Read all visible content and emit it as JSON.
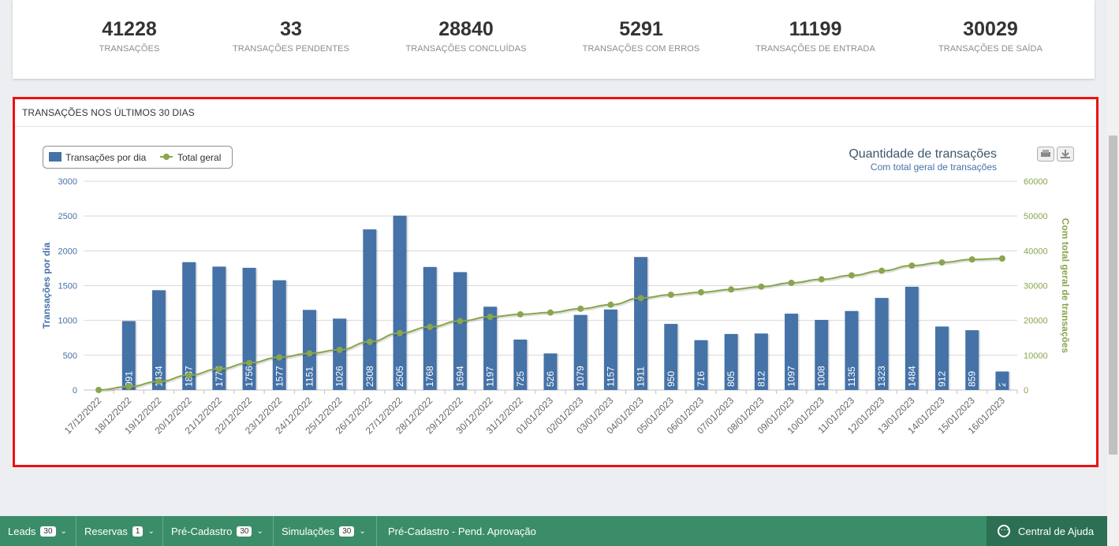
{
  "stats": [
    {
      "value": "41228",
      "label": "TRANSAÇÕES"
    },
    {
      "value": "33",
      "label": "TRANSAÇÕES PENDENTES"
    },
    {
      "value": "28840",
      "label": "TRANSAÇÕES CONCLUÍDAS"
    },
    {
      "value": "5291",
      "label": "TRANSAÇÕES COM ERROS"
    },
    {
      "value": "11199",
      "label": "TRANSAÇÕES DE ENTRADA"
    },
    {
      "value": "30029",
      "label": "TRANSAÇÕES DE SAÍDA"
    }
  ],
  "panel": {
    "title": "TRANSAÇÕES NOS ÚLTIMOS 30 DIAS"
  },
  "chart_data": {
    "type": "bar",
    "title": "Quantidade de transações",
    "subtitle": "Com total geral de transações",
    "legend": [
      "Transações por dia",
      "Total geral"
    ],
    "legend_position": "top-left",
    "ylabel": "Transações por dia",
    "y2label": "Com total geral de transações",
    "ylim": [
      0,
      3000
    ],
    "y2lim": [
      0,
      60000
    ],
    "yticks": [
      "0",
      "500",
      "1000",
      "1500",
      "2000",
      "2500",
      "3000"
    ],
    "y2ticks": [
      "0",
      "10000",
      "20000",
      "30000",
      "40000",
      "50000",
      "60000"
    ],
    "grid": true,
    "categories": [
      "17/12/2022",
      "18/12/2022",
      "19/12/2022",
      "20/12/2022",
      "21/12/2022",
      "22/12/2022",
      "23/12/2022",
      "24/12/2022",
      "25/12/2022",
      "26/12/2022",
      "27/12/2022",
      "28/12/2022",
      "29/12/2022",
      "30/12/2022",
      "31/12/2022",
      "01/01/2023",
      "02/01/2023",
      "03/01/2023",
      "04/01/2023",
      "05/01/2023",
      "06/01/2023",
      "07/01/2023",
      "08/01/2023",
      "09/01/2023",
      "10/01/2023",
      "11/01/2023",
      "12/01/2023",
      "13/01/2023",
      "14/01/2023",
      "15/01/2023",
      "16/01/2023"
    ],
    "series": [
      {
        "name": "Transações por dia",
        "type": "bar",
        "axis": "left",
        "color": "#4572a7",
        "values": [
          0,
          991,
          1434,
          1837,
          1773,
          1756,
          1577,
          1151,
          1026,
          2308,
          2505,
          1768,
          1694,
          1197,
          725,
          526,
          1079,
          1157,
          1911,
          950,
          716,
          805,
          812,
          1097,
          1008,
          1135,
          1323,
          1484,
          912,
          859,
          266
        ]
      },
      {
        "name": "Total geral",
        "type": "line",
        "axis": "right",
        "color": "#89a54e",
        "values": [
          0,
          991,
          2425,
          4262,
          6035,
          7791,
          9368,
          10519,
          11545,
          13853,
          16358,
          18126,
          19820,
          21017,
          21742,
          22268,
          23347,
          24504,
          26415,
          27365,
          28081,
          28886,
          29698,
          30795,
          31803,
          32938,
          34261,
          35745,
          36657,
          37516,
          37782
        ]
      }
    ]
  },
  "bottom_bar": {
    "items": [
      {
        "label": "Leads",
        "badge": "30"
      },
      {
        "label": "Reservas",
        "badge": "1"
      },
      {
        "label": "Pré-Cadastro",
        "badge": "30"
      },
      {
        "label": "Simulações",
        "badge": "30"
      },
      {
        "label": "Pré-Cadastro - Pend. Aprovação"
      }
    ],
    "help_label": "Central de Ajuda"
  },
  "colors": {
    "bars": "#4572a7",
    "line": "#89a54e",
    "highlight": "#ee1111",
    "bottom_bar": "#3a8d68"
  },
  "icons": [
    "print-icon",
    "download-icon",
    "chevron-down-icon",
    "help-chat-icon"
  ]
}
